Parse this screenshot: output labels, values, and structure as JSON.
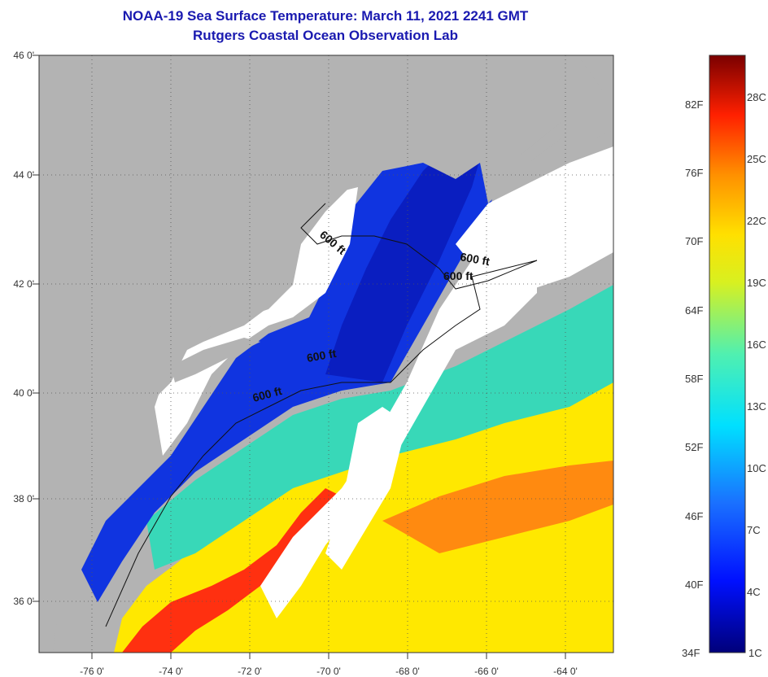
{
  "title": {
    "line1": "NOAA-19 Sea Surface Temperature:  March 11, 2021 2241 GMT",
    "line2": "Rutgers Coastal Ocean Observation Lab"
  },
  "map": {
    "latitude_labels": [
      "46 0'",
      "44 0'",
      "42 0'",
      "40 0'",
      "38 0'",
      "36 0'"
    ],
    "longitude_labels": [
      "-76 0'",
      "-74 0'",
      "-72 0'",
      "-70 0'",
      "-68 0'",
      "-66 0'",
      "-64 0'"
    ],
    "contour_labels": [
      "600 ft",
      "600 ft",
      "600 ft",
      "600 ft",
      "600 ft"
    ],
    "colors": {
      "land": "#b3b3b3",
      "cloud": "#ffffff",
      "cold": "#1030e0",
      "mid": "#30d0c0",
      "warm": "#ffe800",
      "hot": "#ff3010"
    }
  },
  "colorbar": {
    "fahrenheit_labels": [
      "82F",
      "76F",
      "70F",
      "64F",
      "58F",
      "52F",
      "46F",
      "40F",
      "34F"
    ],
    "celsius_labels": [
      "28C",
      "25C",
      "22C",
      "19C",
      "16C",
      "13C",
      "10C",
      "7C",
      "4C",
      "1C"
    ]
  }
}
